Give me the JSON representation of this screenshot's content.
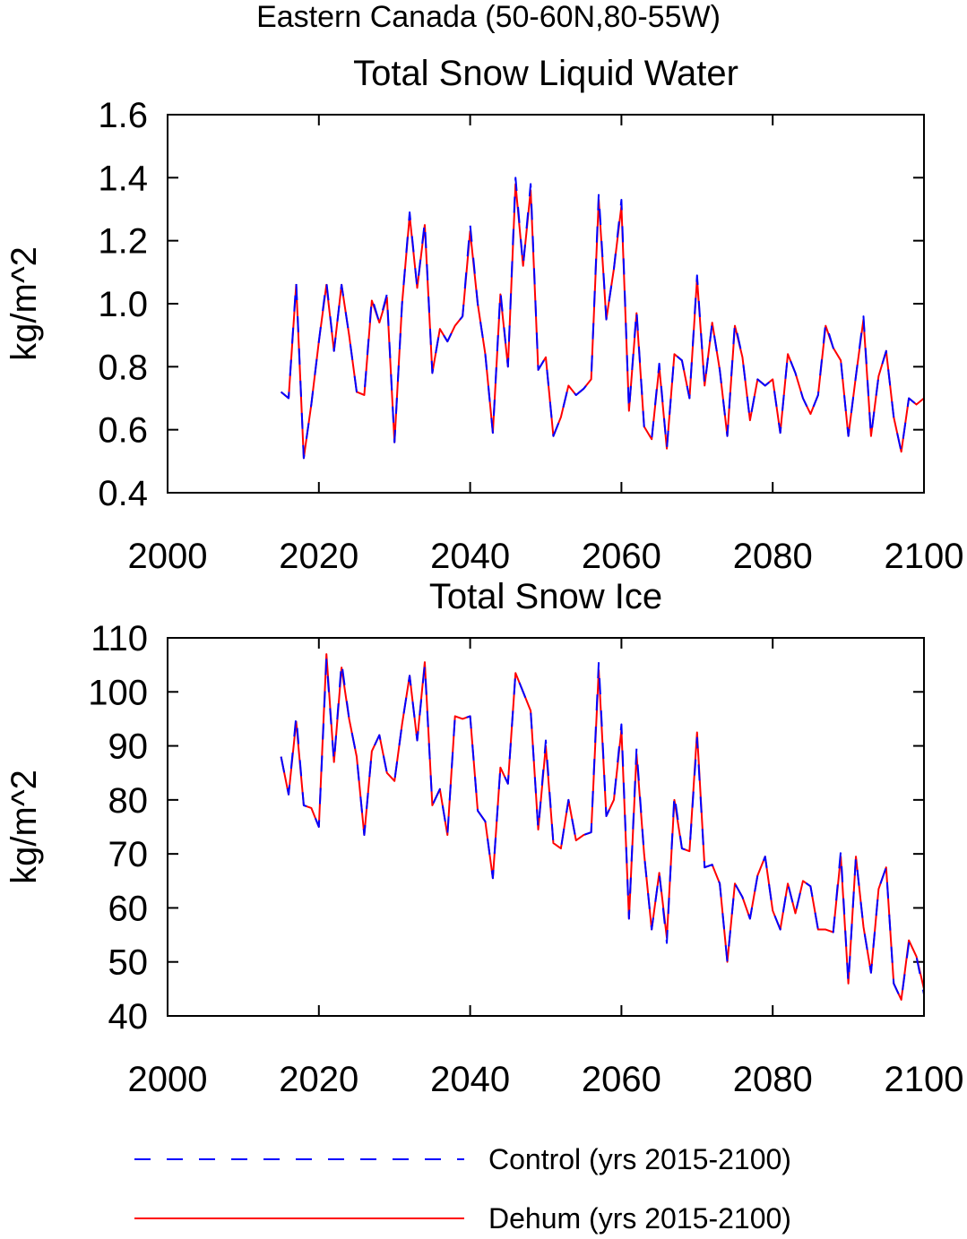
{
  "title": "Eastern Canada (50-60N,80-55W)",
  "chart_data": [
    {
      "type": "line",
      "title": "Total Snow Liquid Water",
      "ylabel": "kg/m^2",
      "x": [
        2015,
        2016,
        2017,
        2018,
        2019,
        2020,
        2021,
        2022,
        2023,
        2024,
        2025,
        2026,
        2027,
        2028,
        2029,
        2030,
        2031,
        2032,
        2033,
        2034,
        2035,
        2036,
        2037,
        2038,
        2039,
        2040,
        2041,
        2042,
        2043,
        2044,
        2045,
        2046,
        2047,
        2048,
        2049,
        2050,
        2051,
        2052,
        2053,
        2054,
        2055,
        2056,
        2057,
        2058,
        2059,
        2060,
        2061,
        2062,
        2063,
        2064,
        2065,
        2066,
        2067,
        2068,
        2069,
        2070,
        2071,
        2072,
        2073,
        2074,
        2075,
        2076,
        2077,
        2078,
        2079,
        2080,
        2081,
        2082,
        2083,
        2084,
        2085,
        2086,
        2087,
        2088,
        2089,
        2090,
        2091,
        2092,
        2093,
        2094,
        2095,
        2096,
        2097,
        2098,
        2099,
        2100
      ],
      "xlim": [
        2000,
        2100
      ],
      "xticks": [
        2000,
        2020,
        2040,
        2060,
        2080,
        2100
      ],
      "ylim": [
        0.4,
        1.6
      ],
      "yticks": [
        0.4,
        0.6,
        0.8,
        {
          "value": 1,
          "label": "1.0"
        },
        1.2,
        1.4,
        1.6
      ],
      "series": [
        {
          "name": "Control (yrs 2015-2100)",
          "color": "#0000ff",
          "linestyle": "dashed",
          "values": [
            0.72,
            0.7,
            1.07,
            0.51,
            0.68,
            0.88,
            1.07,
            0.85,
            1.06,
            0.9,
            0.72,
            0.71,
            1.02,
            0.94,
            1.03,
            0.56,
            1.0,
            1.29,
            1.05,
            1.26,
            0.78,
            0.92,
            0.88,
            0.93,
            0.96,
            1.25,
            1.0,
            0.84,
            0.59,
            1.04,
            0.8,
            1.4,
            1.12,
            1.38,
            0.79,
            0.83,
            0.58,
            0.64,
            0.74,
            0.71,
            0.73,
            0.76,
            1.35,
            0.95,
            1.11,
            1.33,
            0.66,
            0.98,
            0.61,
            0.57,
            0.81,
            0.54,
            0.84,
            0.82,
            0.7,
            1.09,
            0.74,
            0.94,
            0.79,
            0.58,
            0.94,
            0.83,
            0.63,
            0.76,
            0.74,
            0.76,
            0.59,
            0.84,
            0.78,
            0.7,
            0.65,
            0.71,
            0.94,
            0.86,
            0.82,
            0.58,
            0.77,
            0.96,
            0.58,
            0.77,
            0.85,
            0.64,
            0.53,
            0.7,
            0.68,
            0.7
          ]
        },
        {
          "name": "Dehum (yrs 2015-2100)",
          "color": "#ff0000",
          "linestyle": "solid",
          "values": [
            0.72,
            0.7,
            1.06,
            0.51,
            0.68,
            0.88,
            1.06,
            0.85,
            1.06,
            0.9,
            0.72,
            0.71,
            1.01,
            0.94,
            1.02,
            0.56,
            1.0,
            1.28,
            1.05,
            1.25,
            0.78,
            0.92,
            0.88,
            0.93,
            0.96,
            1.23,
            1.0,
            0.84,
            0.59,
            1.03,
            0.8,
            1.38,
            1.12,
            1.36,
            0.79,
            0.83,
            0.58,
            0.64,
            0.74,
            0.71,
            0.73,
            0.76,
            1.33,
            0.95,
            1.11,
            1.31,
            0.66,
            0.97,
            0.61,
            0.57,
            0.8,
            0.54,
            0.84,
            0.82,
            0.7,
            1.08,
            0.74,
            0.94,
            0.79,
            0.58,
            0.93,
            0.83,
            0.63,
            0.76,
            0.74,
            0.76,
            0.59,
            0.84,
            0.78,
            0.7,
            0.65,
            0.71,
            0.93,
            0.86,
            0.82,
            0.58,
            0.77,
            0.95,
            0.58,
            0.77,
            0.85,
            0.64,
            0.53,
            0.7,
            0.68,
            0.7
          ]
        }
      ]
    },
    {
      "type": "line",
      "title": "Total Snow Ice",
      "ylabel": "kg/m^2",
      "x": [
        2015,
        2016,
        2017,
        2018,
        2019,
        2020,
        2021,
        2022,
        2023,
        2024,
        2025,
        2026,
        2027,
        2028,
        2029,
        2030,
        2031,
        2032,
        2033,
        2034,
        2035,
        2036,
        2037,
        2038,
        2039,
        2040,
        2041,
        2042,
        2043,
        2044,
        2045,
        2046,
        2047,
        2048,
        2049,
        2050,
        2051,
        2052,
        2053,
        2054,
        2055,
        2056,
        2057,
        2058,
        2059,
        2060,
        2061,
        2062,
        2063,
        2064,
        2065,
        2066,
        2067,
        2068,
        2069,
        2070,
        2071,
        2072,
        2073,
        2074,
        2075,
        2076,
        2077,
        2078,
        2079,
        2080,
        2081,
        2082,
        2083,
        2084,
        2085,
        2086,
        2087,
        2088,
        2089,
        2090,
        2091,
        2092,
        2093,
        2094,
        2095,
        2096,
        2097,
        2098,
        2099,
        2100
      ],
      "xlim": [
        2000,
        2100
      ],
      "xticks": [
        2000,
        2020,
        2040,
        2060,
        2080,
        2100
      ],
      "ylim": [
        40,
        110
      ],
      "yticks": [
        40,
        50,
        60,
        70,
        80,
        90,
        100,
        110
      ],
      "series": [
        {
          "color": "#0000ff",
          "linestyle": "dashed",
          "values": [
            88,
            81,
            95.5,
            79,
            78.5,
            75,
            106,
            87,
            105.5,
            95,
            88,
            73.5,
            89,
            92,
            85,
            83.5,
            94,
            103,
            91,
            105,
            79,
            82,
            73.5,
            95.5,
            95,
            95.5,
            78,
            76,
            65.5,
            86,
            83,
            103.5,
            100,
            96.5,
            74.5,
            91,
            72,
            71,
            80,
            72.5,
            73.5,
            74,
            105.5,
            77,
            80,
            94,
            58,
            89.5,
            70,
            56,
            66.5,
            53.5,
            81,
            71,
            70.5,
            91.5,
            67.5,
            68,
            64.5,
            50,
            64.5,
            62,
            58,
            66,
            69.5,
            59.5,
            56,
            64.5,
            59,
            65,
            64,
            56,
            56,
            55.5,
            70.5,
            46,
            69.5,
            56.5,
            48,
            63.5,
            67.5,
            46,
            43,
            53.5,
            51,
            44
          ]
        },
        {
          "color": "#ff0000",
          "linestyle": "solid",
          "values": [
            88,
            81,
            94.5,
            79,
            78.5,
            75,
            107,
            87,
            104.5,
            95,
            88,
            73.5,
            89,
            92,
            85,
            83.5,
            94,
            103,
            91,
            105.5,
            79,
            82,
            73.5,
            95.5,
            95,
            95.5,
            78,
            76,
            65.5,
            86,
            83,
            103.5,
            100,
            96.5,
            74.5,
            90,
            72,
            71,
            80,
            72.5,
            73.5,
            74,
            104,
            77,
            80,
            93,
            58,
            88.5,
            70,
            56,
            66.5,
            54.5,
            80,
            71,
            70.5,
            92.5,
            67.5,
            68,
            64.5,
            50,
            64.5,
            62,
            58,
            66,
            69.5,
            59.5,
            56,
            64.5,
            59,
            65,
            64,
            56,
            56,
            55.5,
            69.5,
            46,
            69.5,
            56.5,
            48,
            63.5,
            67.5,
            46,
            43,
            54,
            51,
            45
          ]
        }
      ]
    }
  ]
}
